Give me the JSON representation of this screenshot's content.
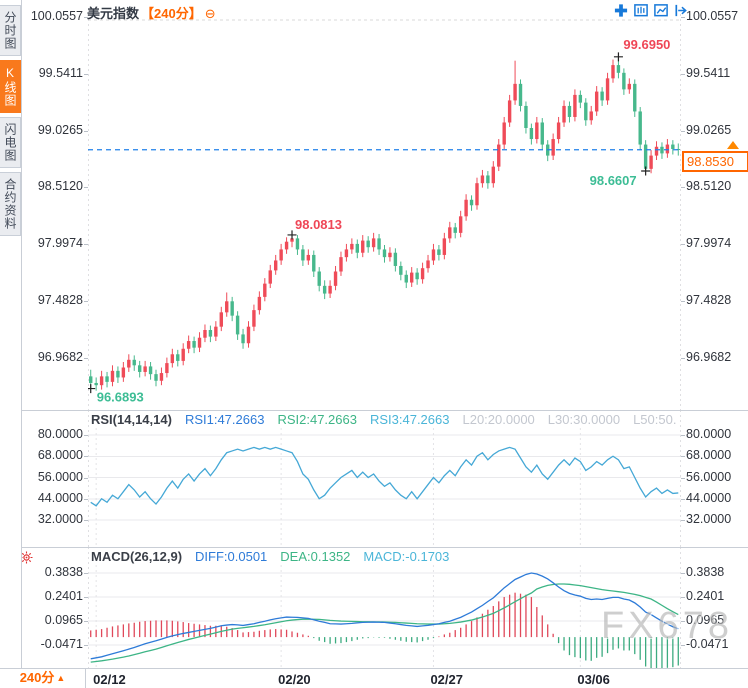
{
  "header": {
    "symbol": "美元指数",
    "period": "【240分】",
    "collapse_icon": "⊖"
  },
  "sidebar": {
    "tabs": [
      {
        "label": "分时图",
        "active": false
      },
      {
        "label": "K线图",
        "active": true
      },
      {
        "label": "闪电图",
        "active": false
      },
      {
        "label": "合约资料",
        "active": false
      }
    ]
  },
  "toolbar": {
    "icons": [
      "crosshair-icon",
      "candle-panel-icon",
      "trend-panel-icon",
      "pan-right-icon"
    ]
  },
  "colors": {
    "up": "#ef4b58",
    "down": "#47b88c",
    "accent": "#ff6600",
    "dashed_line": "#2181ea",
    "rsi_line": "#45a8d6",
    "diff_line": "#2e7bd8",
    "dea_line": "#3db586",
    "hist_up": "#e0485a",
    "hist_down": "#3cab80",
    "grid": "#e9e9ec",
    "axis_text": "#30343c",
    "label_grey": "#c3c7cf",
    "annotation_up": "#ef4656",
    "annotation_down": "#3dbd95"
  },
  "main_chart": {
    "y_ticks": [
      "100.0557",
      "99.5411",
      "99.0265",
      "98.5120",
      "97.9974",
      "97.4828",
      "96.9682"
    ],
    "y_tick_values": [
      100.0557,
      99.5411,
      99.0265,
      98.512,
      97.9974,
      97.4828,
      96.9682
    ],
    "current_price": {
      "label": "98.8530",
      "value": 98.853
    },
    "annotations": [
      {
        "text": "99.6950",
        "bar": 97,
        "anchor": "high",
        "color": "#ef4656",
        "tx": 5,
        "ty": -8
      },
      {
        "text": "98.0813",
        "bar": 37,
        "anchor": "high",
        "color": "#ef4656",
        "tx": 3,
        "ty": -6
      },
      {
        "text": "98.6607",
        "bar": 102,
        "anchor": "low",
        "color": "#3dbd95",
        "tx": -56,
        "ty": 14
      },
      {
        "text": "96.6893",
        "bar": 0,
        "anchor": "low",
        "color": "#3dbd95",
        "tx": 6,
        "ty": 13
      }
    ],
    "candles": [
      [
        96.8,
        96.86,
        96.6893,
        96.74
      ],
      [
        96.74,
        96.79,
        96.67,
        96.72
      ],
      [
        96.72,
        96.85,
        96.68,
        96.8
      ],
      [
        96.8,
        96.84,
        96.7,
        96.75
      ],
      [
        96.75,
        96.9,
        96.71,
        96.85
      ],
      [
        96.85,
        96.89,
        96.74,
        96.79
      ],
      [
        96.79,
        96.93,
        96.75,
        96.88
      ],
      [
        96.88,
        97.0,
        96.84,
        96.95
      ],
      [
        96.95,
        96.99,
        96.85,
        96.9
      ],
      [
        96.9,
        96.94,
        96.79,
        96.84
      ],
      [
        96.84,
        96.94,
        96.8,
        96.89
      ],
      [
        96.89,
        96.93,
        96.77,
        96.82
      ],
      [
        96.82,
        96.86,
        96.71,
        96.76
      ],
      [
        96.76,
        96.88,
        96.72,
        96.83
      ],
      [
        96.83,
        96.97,
        96.79,
        96.92
      ],
      [
        96.92,
        97.05,
        96.88,
        97.0
      ],
      [
        97.0,
        97.04,
        96.89,
        96.94
      ],
      [
        96.94,
        97.1,
        96.9,
        97.05
      ],
      [
        97.05,
        97.17,
        97.01,
        97.12
      ],
      [
        97.12,
        97.16,
        97.01,
        97.06
      ],
      [
        97.06,
        97.2,
        97.02,
        97.15
      ],
      [
        97.15,
        97.27,
        97.11,
        97.22
      ],
      [
        97.22,
        97.26,
        97.11,
        97.16
      ],
      [
        97.16,
        97.3,
        97.12,
        97.25
      ],
      [
        97.25,
        97.43,
        97.21,
        97.38
      ],
      [
        97.38,
        97.56,
        97.34,
        97.48
      ],
      [
        97.48,
        97.52,
        97.3,
        97.35
      ],
      [
        97.35,
        97.39,
        97.13,
        97.18
      ],
      [
        97.18,
        97.23,
        97.05,
        97.1
      ],
      [
        97.1,
        97.3,
        97.06,
        97.25
      ],
      [
        97.25,
        97.45,
        97.21,
        97.4
      ],
      [
        97.4,
        97.57,
        97.36,
        97.52
      ],
      [
        97.52,
        97.69,
        97.48,
        97.64
      ],
      [
        97.64,
        97.81,
        97.6,
        97.76
      ],
      [
        97.76,
        97.9,
        97.72,
        97.85
      ],
      [
        97.85,
        98.0,
        97.81,
        97.95
      ],
      [
        97.95,
        98.06,
        97.91,
        98.02
      ],
      [
        98.02,
        98.0813,
        97.97,
        98.05
      ],
      [
        98.05,
        98.08,
        97.9,
        97.95
      ],
      [
        97.95,
        97.99,
        97.8,
        97.85
      ],
      [
        97.85,
        97.95,
        97.81,
        97.9
      ],
      [
        97.9,
        97.94,
        97.7,
        97.75
      ],
      [
        97.75,
        97.79,
        97.57,
        97.62
      ],
      [
        97.62,
        97.67,
        97.5,
        97.55
      ],
      [
        97.55,
        97.67,
        97.51,
        97.62
      ],
      [
        97.62,
        97.8,
        97.58,
        97.75
      ],
      [
        97.75,
        97.93,
        97.71,
        97.88
      ],
      [
        97.88,
        98.0,
        97.84,
        97.95
      ],
      [
        97.95,
        98.05,
        97.91,
        98.0
      ],
      [
        98.0,
        98.04,
        97.87,
        97.92
      ],
      [
        97.92,
        98.08,
        97.88,
        98.03
      ],
      [
        98.03,
        98.07,
        97.92,
        97.97
      ],
      [
        97.97,
        98.1,
        97.93,
        98.05
      ],
      [
        98.05,
        98.09,
        97.9,
        97.95
      ],
      [
        97.95,
        97.99,
        97.83,
        97.88
      ],
      [
        97.88,
        97.97,
        97.84,
        97.92
      ],
      [
        97.92,
        97.96,
        97.75,
        97.8
      ],
      [
        97.8,
        97.84,
        97.67,
        97.72
      ],
      [
        97.72,
        97.76,
        97.6,
        97.65
      ],
      [
        97.65,
        97.79,
        97.61,
        97.74
      ],
      [
        97.74,
        97.78,
        97.63,
        97.68
      ],
      [
        97.68,
        97.83,
        97.64,
        97.78
      ],
      [
        97.78,
        97.9,
        97.74,
        97.85
      ],
      [
        97.85,
        98.0,
        97.81,
        97.95
      ],
      [
        97.95,
        97.99,
        97.85,
        97.9
      ],
      [
        97.9,
        98.1,
        97.86,
        98.05
      ],
      [
        98.05,
        98.2,
        98.01,
        98.15
      ],
      [
        98.15,
        98.19,
        98.05,
        98.1
      ],
      [
        98.1,
        98.3,
        98.06,
        98.25
      ],
      [
        98.25,
        98.45,
        98.21,
        98.4
      ],
      [
        98.4,
        98.44,
        98.3,
        98.35
      ],
      [
        98.35,
        98.6,
        98.31,
        98.55
      ],
      [
        98.55,
        98.67,
        98.51,
        98.62
      ],
      [
        98.62,
        98.66,
        98.5,
        98.55
      ],
      [
        98.55,
        98.75,
        98.51,
        98.7
      ],
      [
        98.7,
        98.95,
        98.66,
        98.9
      ],
      [
        98.9,
        99.15,
        98.86,
        99.1
      ],
      [
        99.1,
        99.35,
        99.06,
        99.3
      ],
      [
        99.3,
        99.66,
        99.26,
        99.45
      ],
      [
        99.45,
        99.49,
        99.2,
        99.25
      ],
      [
        99.25,
        99.29,
        99.0,
        99.05
      ],
      [
        99.05,
        99.09,
        98.9,
        98.95
      ],
      [
        98.95,
        99.15,
        98.91,
        99.1
      ],
      [
        99.1,
        99.14,
        98.85,
        98.9
      ],
      [
        98.9,
        98.94,
        98.75,
        98.8
      ],
      [
        98.8,
        99.0,
        98.76,
        98.95
      ],
      [
        98.95,
        99.15,
        98.91,
        99.1
      ],
      [
        99.1,
        99.3,
        99.06,
        99.25
      ],
      [
        99.25,
        99.29,
        99.1,
        99.15
      ],
      [
        99.15,
        99.4,
        99.11,
        99.35
      ],
      [
        99.35,
        99.39,
        99.23,
        99.28
      ],
      [
        99.28,
        99.32,
        99.07,
        99.12
      ],
      [
        99.12,
        99.25,
        99.08,
        99.2
      ],
      [
        99.2,
        99.43,
        99.16,
        99.38
      ],
      [
        99.38,
        99.42,
        99.25,
        99.3
      ],
      [
        99.3,
        99.55,
        99.26,
        99.5
      ],
      [
        99.5,
        99.67,
        99.46,
        99.62
      ],
      [
        99.62,
        99.695,
        99.5,
        99.55
      ],
      [
        99.55,
        99.59,
        99.35,
        99.4
      ],
      [
        99.4,
        99.5,
        99.36,
        99.45
      ],
      [
        99.45,
        99.49,
        99.15,
        99.2
      ],
      [
        99.2,
        99.24,
        98.85,
        98.9
      ],
      [
        98.9,
        98.94,
        98.6607,
        98.68
      ],
      [
        98.68,
        98.85,
        98.64,
        98.8
      ],
      [
        98.8,
        98.93,
        98.76,
        98.88
      ],
      [
        98.88,
        98.92,
        98.77,
        98.82
      ],
      [
        98.82,
        98.95,
        98.78,
        98.9
      ],
      [
        98.9,
        98.94,
        98.81,
        98.86
      ],
      [
        98.86,
        98.91,
        98.8,
        98.853
      ]
    ]
  },
  "rsi_panel": {
    "header": [
      {
        "text": "RSI(14,14,14)",
        "color": "#3a3f48"
      },
      {
        "text": "RSI1:47.2663",
        "color": "#2e7bd8"
      },
      {
        "text": "RSI2:47.2663",
        "color": "#3db586"
      },
      {
        "text": "RSI3:47.2663",
        "color": "#4ab5d8"
      },
      {
        "text": "L20:20.0000",
        "color": "#c3c7cf"
      },
      {
        "text": "L30:30.0000",
        "color": "#c3c7cf"
      },
      {
        "text": "L50:50.",
        "color": "#c3c7cf"
      }
    ],
    "y_ticks": [
      "80.0000",
      "68.0000",
      "56.0000",
      "44.0000",
      "32.0000"
    ],
    "y_tick_values": [
      80,
      68,
      56,
      44,
      32
    ],
    "values": [
      42,
      40,
      44,
      42,
      46,
      44,
      48,
      52,
      49,
      45,
      48,
      44,
      41,
      45,
      50,
      54,
      50,
      55,
      58,
      54,
      58,
      61,
      57,
      61,
      66,
      70,
      71,
      72,
      71,
      72,
      73,
      72,
      73,
      72,
      73,
      72,
      71,
      70,
      65,
      58,
      55,
      49,
      44,
      46,
      50,
      53,
      56,
      58,
      60,
      56,
      59,
      56,
      58,
      54,
      51,
      53,
      49,
      46,
      44,
      48,
      44,
      48,
      52,
      56,
      53,
      57,
      60,
      57,
      62,
      66,
      63,
      68,
      70,
      66,
      69,
      71,
      72,
      73,
      72,
      67,
      62,
      59,
      63,
      58,
      55,
      59,
      63,
      66,
      63,
      67,
      65,
      60,
      62,
      65,
      63,
      66,
      68,
      66,
      61,
      62,
      56,
      50,
      45,
      48,
      50,
      47,
      49,
      47,
      47.27
    ]
  },
  "macd_panel": {
    "header": [
      {
        "text": "MACD(26,12,9)",
        "color": "#3a3f48"
      },
      {
        "text": "DIFF:0.0501",
        "color": "#2e7bd8"
      },
      {
        "text": "DEA:0.1352",
        "color": "#3db586"
      },
      {
        "text": "MACD:-0.1703",
        "color": "#4ab5d8"
      }
    ],
    "y_ticks": [
      "0.3838",
      "0.2401",
      "0.0965",
      "-0.0471"
    ],
    "y_tick_values": [
      0.3838,
      0.2401,
      0.0965,
      -0.0471
    ],
    "diff": [
      -0.13,
      -0.124,
      -0.118,
      -0.109,
      -0.1,
      -0.091,
      -0.082,
      -0.072,
      -0.062,
      -0.051,
      -0.04,
      -0.031,
      -0.022,
      -0.012,
      -0.002,
      0.007,
      0.015,
      0.022,
      0.028,
      0.034,
      0.04,
      0.046,
      0.052,
      0.06,
      0.068,
      0.072,
      0.075,
      0.073,
      0.07,
      0.075,
      0.08,
      0.088,
      0.095,
      0.103,
      0.11,
      0.115,
      0.12,
      0.119,
      0.118,
      0.115,
      0.112,
      0.104,
      0.095,
      0.088,
      0.08,
      0.079,
      0.078,
      0.08,
      0.082,
      0.085,
      0.088,
      0.089,
      0.09,
      0.089,
      0.088,
      0.084,
      0.08,
      0.075,
      0.07,
      0.067,
      0.064,
      0.067,
      0.07,
      0.075,
      0.08,
      0.088,
      0.095,
      0.107,
      0.118,
      0.134,
      0.15,
      0.17,
      0.19,
      0.213,
      0.235,
      0.265,
      0.295,
      0.32,
      0.345,
      0.36,
      0.375,
      0.3838,
      0.378,
      0.365,
      0.348,
      0.325,
      0.3,
      0.278,
      0.262,
      0.252,
      0.245,
      0.232,
      0.225,
      0.228,
      0.225,
      0.232,
      0.238,
      0.238,
      0.228,
      0.222,
      0.205,
      0.18,
      0.15,
      0.135,
      0.115,
      0.095,
      0.078,
      0.062,
      0.0501
    ],
    "dea": [
      -0.15,
      -0.146,
      -0.142,
      -0.137,
      -0.132,
      -0.126,
      -0.12,
      -0.113,
      -0.105,
      -0.097,
      -0.088,
      -0.08,
      -0.072,
      -0.062,
      -0.052,
      -0.042,
      -0.032,
      -0.023,
      -0.014,
      -0.006,
      0.002,
      0.01,
      0.018,
      0.026,
      0.034,
      0.041,
      0.048,
      0.052,
      0.056,
      0.06,
      0.064,
      0.069,
      0.074,
      0.08,
      0.086,
      0.092,
      0.098,
      0.102,
      0.105,
      0.107,
      0.108,
      0.107,
      0.106,
      0.103,
      0.1,
      0.098,
      0.096,
      0.095,
      0.094,
      0.093,
      0.092,
      0.092,
      0.091,
      0.091,
      0.09,
      0.089,
      0.088,
      0.086,
      0.084,
      0.082,
      0.08,
      0.079,
      0.078,
      0.078,
      0.078,
      0.08,
      0.082,
      0.086,
      0.09,
      0.096,
      0.102,
      0.111,
      0.12,
      0.131,
      0.142,
      0.158,
      0.175,
      0.193,
      0.212,
      0.23,
      0.248,
      0.264,
      0.288,
      0.3,
      0.31,
      0.315,
      0.318,
      0.318,
      0.316,
      0.312,
      0.308,
      0.302,
      0.296,
      0.29,
      0.284,
      0.28,
      0.276,
      0.272,
      0.268,
      0.262,
      0.256,
      0.248,
      0.238,
      0.228,
      0.21,
      0.19,
      0.17,
      0.152,
      0.1352
    ]
  },
  "bottom_bar": {
    "period": "240分",
    "arrow": "▲",
    "x_labels": [
      {
        "label": "02/12",
        "bar": 1
      },
      {
        "label": "02/20",
        "bar": 35
      },
      {
        "label": "02/27",
        "bar": 63
      },
      {
        "label": "03/06",
        "bar": 90
      }
    ]
  },
  "watermark": "FX678"
}
